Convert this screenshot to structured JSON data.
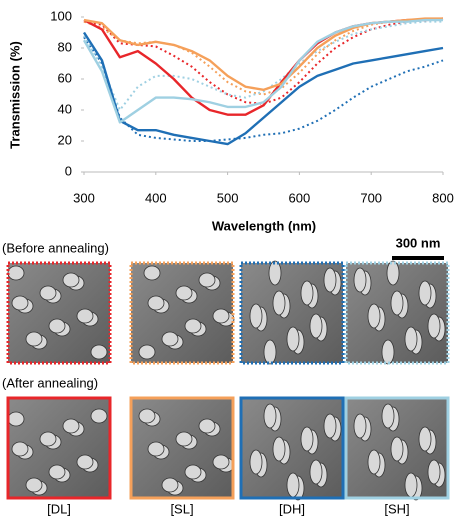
{
  "chart_data": {
    "type": "line",
    "y_label": "Transmission (%)",
    "x_label": "Wavelength (nm)",
    "x": [
      300,
      325,
      350,
      375,
      400,
      425,
      450,
      475,
      500,
      525,
      550,
      575,
      600,
      625,
      650,
      675,
      700,
      725,
      750,
      775,
      800
    ],
    "xlim": [
      300,
      800
    ],
    "xticks": [
      300,
      400,
      500,
      600,
      700,
      800
    ],
    "ylim": [
      0,
      100
    ],
    "yticks": [
      0,
      20,
      40,
      60,
      80,
      100
    ],
    "grid": false,
    "series": [
      {
        "color": "#e8262a",
        "dashed": true,
        "values": [
          97,
          95,
          83,
          82,
          81,
          75,
          68,
          58,
          50,
          45,
          44,
          48,
          58,
          70,
          80,
          87,
          92,
          95,
          97,
          98,
          99
        ]
      },
      {
        "color": "#f5a05a",
        "dashed": true,
        "values": [
          97,
          93,
          85,
          83,
          84,
          82,
          77,
          68,
          58,
          52,
          50,
          54,
          64,
          76,
          85,
          91,
          95,
          97,
          98,
          98,
          99
        ]
      },
      {
        "color": "#1f6fb5",
        "dashed": true,
        "values": [
          87,
          70,
          35,
          24,
          22,
          21,
          20,
          20,
          21,
          22,
          24,
          25,
          28,
          33,
          40,
          48,
          55,
          60,
          65,
          68,
          72
        ]
      },
      {
        "color": "#9fd0e2",
        "dashed": true,
        "values": [
          88,
          68,
          40,
          55,
          62,
          62,
          60,
          55,
          50,
          48,
          52,
          60,
          70,
          78,
          84,
          89,
          92,
          94,
          96,
          97,
          97
        ]
      },
      {
        "color": "#e8262a",
        "dashed": false,
        "values": [
          98,
          92,
          74,
          78,
          70,
          60,
          48,
          40,
          37,
          37,
          43,
          58,
          72,
          83,
          90,
          94,
          96,
          97,
          98,
          98,
          99
        ]
      },
      {
        "color": "#f5a05a",
        "dashed": false,
        "values": [
          98,
          96,
          85,
          82,
          84,
          82,
          78,
          72,
          62,
          55,
          53,
          57,
          68,
          80,
          88,
          93,
          96,
          97,
          98,
          99,
          99
        ]
      },
      {
        "color": "#1f6fb5",
        "dashed": false,
        "values": [
          90,
          72,
          33,
          27,
          27,
          24,
          22,
          20,
          18,
          25,
          35,
          45,
          55,
          62,
          66,
          70,
          72,
          74,
          76,
          78,
          80
        ]
      },
      {
        "color": "#9fd0e2",
        "dashed": false,
        "values": [
          85,
          65,
          32,
          40,
          48,
          48,
          47,
          45,
          42,
          42,
          45,
          55,
          72,
          84,
          90,
          94,
          96,
          97,
          97,
          98,
          98
        ]
      }
    ]
  },
  "figure": {
    "scale_bar": "300 nm",
    "rows": [
      "(Before annealing)",
      "(After annealing)"
    ],
    "columns": [
      "[DL]",
      "[SL]",
      "[DH]",
      "[SH]"
    ]
  }
}
